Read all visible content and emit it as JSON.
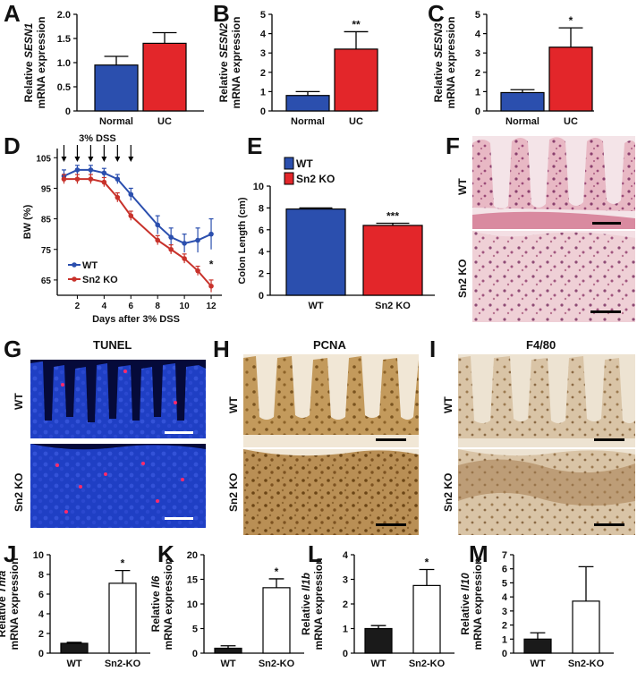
{
  "panels": {
    "A": "A",
    "B": "B",
    "C": "C",
    "D": "D",
    "E": "E",
    "F": "F",
    "G": "G",
    "H": "H",
    "I": "I",
    "J": "J",
    "K": "K",
    "L": "L",
    "M": "M"
  },
  "micro": {
    "F": {
      "rows": [
        "WT",
        "Sn2 KO"
      ]
    },
    "G": {
      "title": "TUNEL",
      "rows": [
        "WT",
        "Sn2 KO"
      ]
    },
    "H": {
      "title": "PCNA",
      "rows": [
        "WT",
        "Sn2 KO"
      ]
    },
    "I": {
      "title": "F4/80",
      "rows": [
        "WT",
        "Sn2 KO"
      ]
    }
  },
  "colors": {
    "blue": "#2b4fae",
    "red": "#e3262a",
    "black": "#1a1a1a",
    "white": "#ffffff"
  },
  "chart_data": [
    {
      "id": "A",
      "type": "bar",
      "ylabel_pre": "Relative ",
      "ylabel_gene": "SESN1",
      "ylabel_line2": "mRNA expression",
      "categories": [
        "Normal",
        "UC"
      ],
      "values": [
        0.95,
        1.4
      ],
      "errors": [
        0.18,
        0.22
      ],
      "ylim": [
        0,
        2
      ],
      "ticks": [
        "0",
        "0.5",
        "1.0",
        "1.5",
        "2.0"
      ],
      "sig": [
        "",
        ""
      ],
      "fills": [
        "#2b4fae",
        "#e3262a"
      ]
    },
    {
      "id": "B",
      "type": "bar",
      "ylabel_pre": "Relative ",
      "ylabel_gene": "SESN2",
      "ylabel_line2": "mRNA expression",
      "categories": [
        "Normal",
        "UC"
      ],
      "values": [
        0.8,
        3.2
      ],
      "errors": [
        0.2,
        0.9
      ],
      "ylim": [
        0,
        5
      ],
      "ticks": [
        "0",
        "1",
        "2",
        "3",
        "4",
        "5"
      ],
      "sig": [
        "",
        "**"
      ],
      "fills": [
        "#2b4fae",
        "#e3262a"
      ]
    },
    {
      "id": "C",
      "type": "bar",
      "ylabel_pre": "Relative ",
      "ylabel_gene": "SESN3",
      "ylabel_line2": "mRNA expression",
      "categories": [
        "Normal",
        "UC"
      ],
      "values": [
        0.95,
        3.3
      ],
      "errors": [
        0.15,
        1.0
      ],
      "ylim": [
        0,
        5
      ],
      "ticks": [
        "0",
        "1",
        "2",
        "3",
        "4",
        "5"
      ],
      "sig": [
        "",
        "*"
      ],
      "fills": [
        "#2b4fae",
        "#e3262a"
      ]
    },
    {
      "id": "D",
      "type": "line",
      "title": "3% DSS",
      "xlabel": "Days after 3% DSS",
      "ylabel": "BW (%)",
      "x": [
        1,
        2,
        3,
        4,
        5,
        6,
        8,
        9,
        10,
        11,
        12
      ],
      "ylim": [
        60,
        108
      ],
      "xticks": [
        2,
        4,
        6,
        8,
        10,
        12
      ],
      "yticks": [
        65,
        75,
        85,
        95,
        105
      ],
      "arrows": [
        1,
        2,
        3,
        4,
        5,
        6
      ],
      "series": [
        {
          "name": "WT",
          "color": "#2b4fae",
          "values": [
            99,
            101,
            101,
            100,
            98,
            93,
            83,
            79,
            77,
            78,
            80
          ],
          "errors": [
            2,
            1.5,
            1.5,
            1.5,
            1.5,
            2,
            3,
            3,
            3,
            4,
            5
          ]
        },
        {
          "name": "Sn2 KO",
          "color": "#c8322b",
          "values": [
            98,
            98,
            98,
            97,
            92,
            86,
            78,
            75,
            72,
            68,
            63
          ],
          "errors": [
            1.5,
            1.5,
            1.5,
            1.5,
            1.5,
            1.5,
            1.5,
            1.5,
            1.5,
            1.5,
            2
          ]
        }
      ],
      "annotation": "*"
    },
    {
      "id": "E",
      "type": "bar",
      "ylabel": "Colon Length (cm)",
      "categories": [
        "WT",
        "Sn2 KO"
      ],
      "values": [
        7.9,
        6.4
      ],
      "errors": [
        0.1,
        0.2
      ],
      "ylim": [
        0,
        10
      ],
      "ticks": [
        "0",
        "2",
        "4",
        "6",
        "8",
        "10"
      ],
      "sig": [
        "",
        "***"
      ],
      "fills": [
        "#2b4fae",
        "#e3262a"
      ],
      "legend": [
        {
          "name": "WT",
          "color": "#2b4fae"
        },
        {
          "name": "Sn2 KO",
          "color": "#e3262a"
        }
      ]
    },
    {
      "id": "J",
      "type": "bar",
      "ylabel_pre": "Relative ",
      "ylabel_gene": "Tnfa",
      "ylabel_line2": "mRNA expression",
      "categories": [
        "WT",
        "Sn2-KO"
      ],
      "values": [
        1.0,
        7.1
      ],
      "errors": [
        0.1,
        1.3
      ],
      "ylim": [
        0,
        10
      ],
      "ticks": [
        "0",
        "2",
        "4",
        "6",
        "8",
        "10"
      ],
      "sig": [
        "",
        "*"
      ],
      "fills": [
        "#1a1a1a",
        "#ffffff"
      ]
    },
    {
      "id": "K",
      "type": "bar",
      "ylabel_pre": "Relative ",
      "ylabel_gene": "Il6",
      "ylabel_line2": "mRNA expression",
      "categories": [
        "WT",
        "Sn2-KO"
      ],
      "values": [
        1.0,
        13.3
      ],
      "errors": [
        0.5,
        1.8
      ],
      "ylim": [
        0,
        20
      ],
      "ticks": [
        "0",
        "5",
        "10",
        "15",
        "20"
      ],
      "sig": [
        "",
        "*"
      ],
      "fills": [
        "#1a1a1a",
        "#ffffff"
      ]
    },
    {
      "id": "L",
      "type": "bar",
      "ylabel_pre": "Relative ",
      "ylabel_gene": "Il1b",
      "ylabel_line2": "mRNA expression",
      "categories": [
        "WT",
        "Sn2-KO"
      ],
      "values": [
        1.0,
        2.75
      ],
      "errors": [
        0.12,
        0.65
      ],
      "ylim": [
        0,
        4
      ],
      "ticks": [
        "0",
        "1",
        "2",
        "3",
        "4"
      ],
      "sig": [
        "",
        "*"
      ],
      "fills": [
        "#1a1a1a",
        "#ffffff"
      ]
    },
    {
      "id": "M",
      "type": "bar",
      "ylabel_pre": "Relative ",
      "ylabel_gene": "Il10",
      "ylabel_line2": "mRNA expression",
      "categories": [
        "WT",
        "Sn2-KO"
      ],
      "values": [
        1.0,
        3.7
      ],
      "errors": [
        0.45,
        2.45
      ],
      "ylim": [
        0,
        7
      ],
      "ticks": [
        "0",
        "1",
        "2",
        "3",
        "4",
        "5",
        "6",
        "7"
      ],
      "sig": [
        "",
        ""
      ],
      "fills": [
        "#1a1a1a",
        "#ffffff"
      ]
    }
  ]
}
